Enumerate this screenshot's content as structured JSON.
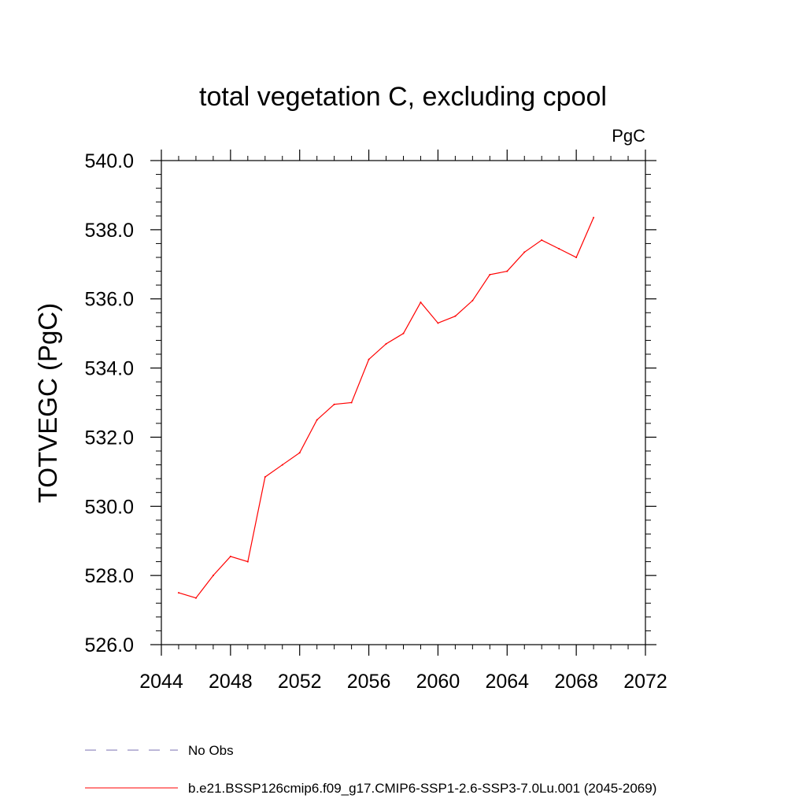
{
  "chart_data": {
    "type": "line",
    "title": "total vegetation C, excluding cpool",
    "units": "PgC",
    "ylabel": "TOTVEGC  (PgC)",
    "xlabel": "",
    "xlim": [
      2044,
      2072
    ],
    "ylim": [
      526.0,
      540.0
    ],
    "x_ticks": [
      "2044",
      "2048",
      "2052",
      "2056",
      "2060",
      "2064",
      "2068",
      "2072"
    ],
    "y_ticks": [
      "526.0",
      "528.0",
      "530.0",
      "532.0",
      "534.0",
      "536.0",
      "538.0",
      "540.0"
    ],
    "grid": false,
    "legend_position": "bottom",
    "series": [
      {
        "name": "b.e21.BSSP126cmip6.f09_g17.CMIP6-SSP1-2.6-SSP3-7.0Lu.001 (2045-2069)",
        "color": "#ff0000",
        "x": [
          2045,
          2046,
          2047,
          2048,
          2049,
          2050,
          2051,
          2052,
          2053,
          2054,
          2055,
          2056,
          2057,
          2058,
          2059,
          2060,
          2061,
          2062,
          2063,
          2064,
          2065,
          2066,
          2067,
          2068,
          2069
        ],
        "values": [
          527.5,
          527.35,
          528.0,
          528.55,
          528.4,
          530.85,
          531.2,
          531.55,
          532.5,
          532.95,
          533.0,
          534.25,
          534.7,
          535.0,
          535.9,
          535.3,
          535.5,
          535.95,
          536.7,
          536.8,
          537.35,
          537.7,
          537.45,
          537.2,
          538.35
        ]
      }
    ],
    "legend": [
      {
        "label": "No Obs",
        "color": "#7a6fb0",
        "style": "dashed"
      },
      {
        "label": "b.e21.BSSP126cmip6.f09_g17.CMIP6-SSP1-2.6-SSP3-7.0Lu.001 (2045-2069)",
        "color": "#ff0000",
        "style": "solid"
      }
    ]
  }
}
